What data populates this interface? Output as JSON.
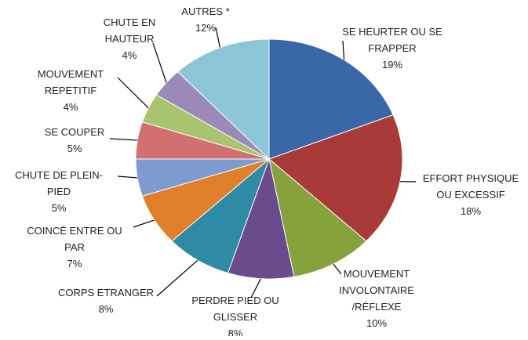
{
  "chart_data": {
    "type": "pie",
    "categories": [
      "SE HEURTER OU SE\nFRAPPER",
      "EFFORT PHYSIQUE\nOU EXCESSIF",
      "MOUVEMENT\nINVOLONTAIRE\n/RÉFLEXE",
      "PERDRE PIED OU\nGLISSER",
      "CORPS ETRANGER",
      "COINCÉ ENTRE OU\nPAR",
      "CHUTE DE PLEIN-\nPIED",
      "SE COUPER",
      "MOUVEMENT\nREPETITIF",
      "CHUTE EN\nHAUTEUR",
      "AUTRES *"
    ],
    "values": [
      19,
      18,
      10,
      8,
      8,
      7,
      5,
      5,
      4,
      4,
      12
    ],
    "value_labels": [
      "19%",
      "18%",
      "10%",
      "8%",
      "8%",
      "7%",
      "5%",
      "5%",
      "4%",
      "4%",
      "12%"
    ],
    "colors": [
      "#3a67a8",
      "#a83b39",
      "#86a23d",
      "#6a4c8c",
      "#2f8aa5",
      "#e07f2b",
      "#7d9bd1",
      "#d27070",
      "#a9c46e",
      "#9a89b9",
      "#8cc5d5"
    ]
  }
}
